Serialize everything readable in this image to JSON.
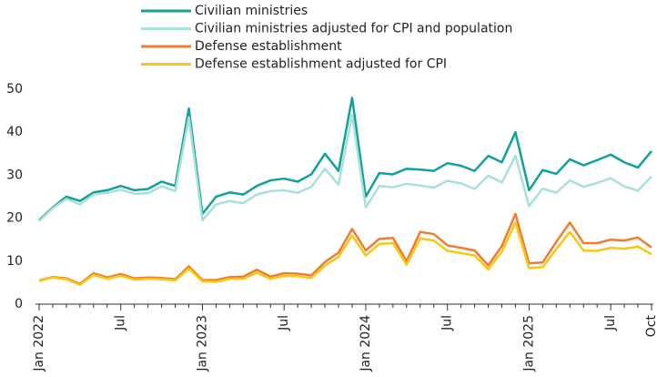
{
  "chart_data": {
    "type": "line",
    "categories": [
      "Jan 2022",
      null,
      null,
      null,
      null,
      null,
      "Jul",
      null,
      null,
      null,
      null,
      null,
      "Jan 2023",
      null,
      null,
      null,
      null,
      null,
      "Jul",
      null,
      null,
      null,
      null,
      null,
      "Jan 2024",
      null,
      null,
      null,
      null,
      null,
      "Jul",
      null,
      null,
      null,
      null,
      null,
      "Jan 2025",
      null,
      null,
      null,
      null,
      null,
      "Jul",
      null,
      null,
      "Oct"
    ],
    "series": [
      {
        "name": "Civilian ministries",
        "color": "#12a19a",
        "values": [
          19.5,
          22.5,
          25,
          24,
          26,
          26.5,
          27.5,
          26.5,
          26.8,
          28.5,
          27.5,
          45.5,
          21,
          25,
          26,
          25.5,
          27.5,
          28.8,
          29.2,
          28.5,
          30.2,
          35,
          31,
          48,
          25,
          30.5,
          30.2,
          31.5,
          31.3,
          31,
          32.8,
          32.2,
          31,
          34.5,
          33,
          40,
          26.5,
          31.2,
          30.3,
          33.7,
          32.3,
          33.5,
          34.8,
          33,
          31.8,
          35.6
        ]
      },
      {
        "name": "Civilian ministries adjusted for CPI and population",
        "color": "#a8e0dc",
        "values": [
          19.3,
          22.3,
          24.5,
          23.2,
          25.5,
          25.9,
          26.6,
          25.7,
          25.8,
          27.4,
          26.3,
          43.5,
          19.5,
          23.2,
          24,
          23.5,
          25.5,
          26.3,
          26.5,
          25.9,
          27.3,
          31.5,
          27.8,
          44,
          22.5,
          27.5,
          27.2,
          28,
          27.6,
          27.1,
          28.7,
          28.1,
          26.8,
          29.9,
          28.3,
          34.5,
          22.8,
          26.9,
          25.9,
          28.8,
          27.3,
          28.2,
          29.3,
          27.4,
          26.4,
          29.7
        ]
      },
      {
        "name": "Defense establishment",
        "color": "#ee7d31",
        "values": [
          5.5,
          6.3,
          6,
          4.7,
          7.2,
          6.2,
          7,
          6,
          6.2,
          6.1,
          5.8,
          8.8,
          5.6,
          5.6,
          6.3,
          6.4,
          8,
          6.4,
          7.2,
          7.1,
          6.7,
          9.8,
          12,
          17.5,
          12.5,
          15.2,
          15.4,
          10,
          16.8,
          16.3,
          13.7,
          13.1,
          12.5,
          9,
          13.5,
          21,
          9.5,
          9.7,
          14.5,
          19,
          14.2,
          14.2,
          15,
          14.8,
          15.5,
          13.2
        ]
      },
      {
        "name": "Defense establishment adjusted for CPI",
        "color": "#f9c712",
        "values": [
          5.4,
          6.2,
          5.8,
          4.5,
          6.8,
          5.9,
          6.6,
          5.7,
          5.9,
          5.8,
          5.5,
          8.3,
          5.3,
          5.2,
          5.9,
          5.9,
          7.3,
          5.9,
          6.6,
          6.5,
          6.1,
          9,
          11,
          16,
          11.3,
          14,
          14.2,
          9.2,
          15.3,
          14.8,
          12.4,
          11.9,
          11.3,
          8.1,
          12.2,
          19,
          8.4,
          8.6,
          12.8,
          16.8,
          12.5,
          12.4,
          13.1,
          12.9,
          13.4,
          11.6
        ]
      }
    ],
    "ylim": [
      0,
      50
    ],
    "yticks": [
      0,
      10,
      20,
      30,
      40,
      50
    ],
    "grid": false
  }
}
